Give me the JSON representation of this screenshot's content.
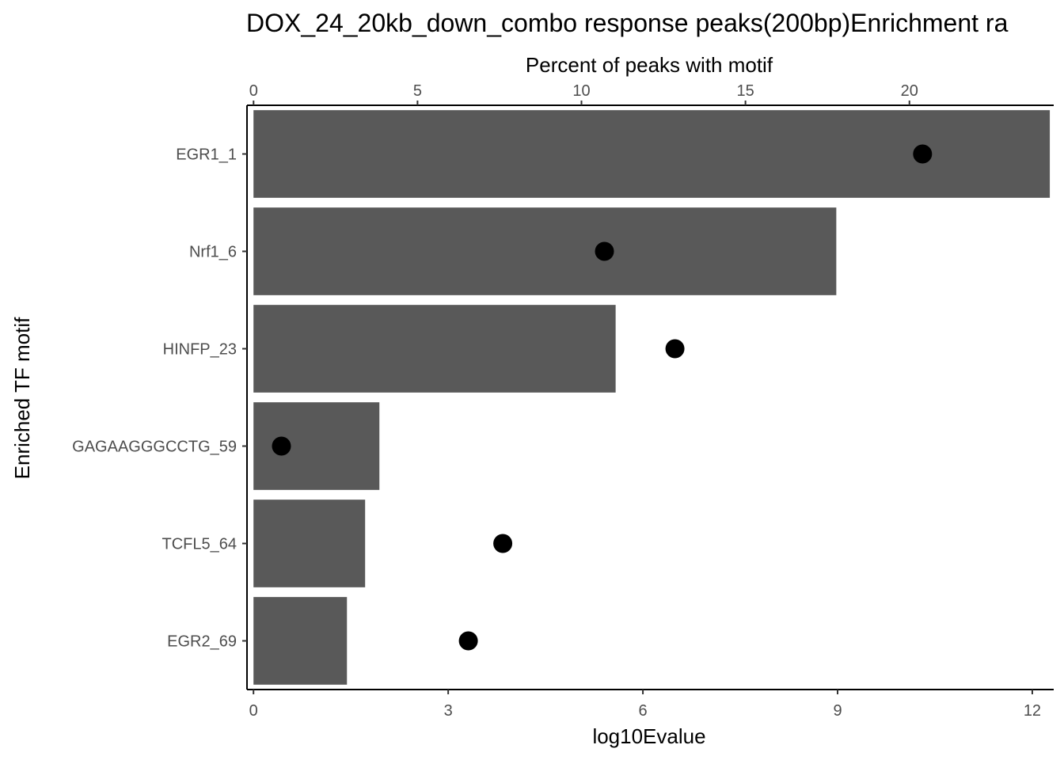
{
  "chart_data": {
    "type": "bar",
    "title": "DOX_24_20kb_down_combo response peaks(200bp)Enrichment ra",
    "xlabel": "log10Evalue",
    "x2label": "Percent of peaks with motif",
    "ylabel": "Enriched TF motif",
    "categories": [
      "EGR1_1",
      "Nrf1_6",
      "HINFP_23",
      "GAGAAGGGCCTG_59",
      "TCFL5_64",
      "EGR2_69"
    ],
    "series": [
      {
        "axis": "bottom",
        "mark": "bar",
        "values": [
          12.27,
          8.98,
          5.58,
          1.94,
          1.72,
          1.44
        ]
      },
      {
        "axis": "top",
        "mark": "point",
        "values": [
          20.4,
          10.7,
          12.85,
          0.85,
          7.6,
          6.55
        ]
      }
    ],
    "xlim": [
      -0.1,
      12.33
    ],
    "x_ticks": [
      "0",
      "3",
      "6",
      "9",
      "12"
    ],
    "x2lim": [
      -0.2,
      24.4
    ],
    "x2_ticks": [
      "0",
      "5",
      "10",
      "15",
      "20"
    ],
    "colors": {
      "bar": "#595959",
      "point": "#000000",
      "axis": "#000000",
      "tick_label": "#4d4d4d"
    },
    "grid": false,
    "legend": "none"
  }
}
